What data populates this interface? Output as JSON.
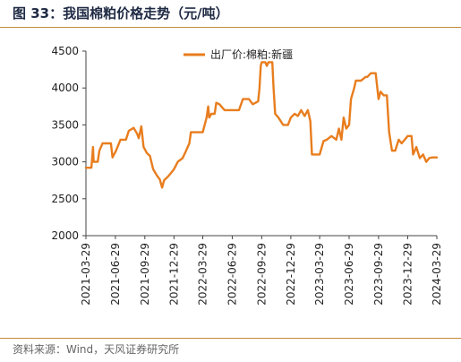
{
  "header": {
    "title": "图 33：我国棉粕价格走势（元/吨）"
  },
  "footer": {
    "source": "资料来源：Wind，天风证券研究所"
  },
  "chart_data": {
    "type": "line",
    "title": "",
    "xlabel": "",
    "ylabel": "",
    "ylim": [
      2000,
      4500
    ],
    "yticks": [
      2000,
      2500,
      3000,
      3500,
      4000,
      4500
    ],
    "xlim": [
      "2021-03-29",
      "2024-03-29"
    ],
    "xticks": [
      "2021-03-29",
      "2021-06-29",
      "2021-09-29",
      "2021-12-29",
      "2022-03-29",
      "2022-06-29",
      "2022-09-29",
      "2022-12-29",
      "2023-03-29",
      "2023-06-29",
      "2023-09-29",
      "2023-12-29",
      "2024-03-29"
    ],
    "grid": false,
    "legend_position": "top-center",
    "series": [
      {
        "name": "出厂价:棉粕:新疆",
        "color": "#e87d1e",
        "points": [
          [
            "2021-03-29",
            2920
          ],
          [
            "2021-04-15",
            2920
          ],
          [
            "2021-04-20",
            3200
          ],
          [
            "2021-04-22",
            3000
          ],
          [
            "2021-05-05",
            3000
          ],
          [
            "2021-05-10",
            3150
          ],
          [
            "2021-05-20",
            3250
          ],
          [
            "2021-06-10",
            3250
          ],
          [
            "2021-06-15",
            3250
          ],
          [
            "2021-06-20",
            3060
          ],
          [
            "2021-07-01",
            3150
          ],
          [
            "2021-07-15",
            3300
          ],
          [
            "2021-08-01",
            3300
          ],
          [
            "2021-08-10",
            3420
          ],
          [
            "2021-08-25",
            3460
          ],
          [
            "2021-09-05",
            3380
          ],
          [
            "2021-09-10",
            3320
          ],
          [
            "2021-09-18",
            3480
          ],
          [
            "2021-09-25",
            3200
          ],
          [
            "2021-10-05",
            3120
          ],
          [
            "2021-10-15",
            3080
          ],
          [
            "2021-10-25",
            2900
          ],
          [
            "2021-11-05",
            2820
          ],
          [
            "2021-11-15",
            2760
          ],
          [
            "2021-11-22",
            2650
          ],
          [
            "2021-11-28",
            2750
          ],
          [
            "2021-12-10",
            2800
          ],
          [
            "2021-12-20",
            2850
          ],
          [
            "2021-12-29",
            2900
          ],
          [
            "2022-01-10",
            3000
          ],
          [
            "2022-01-25",
            3050
          ],
          [
            "2022-02-05",
            3150
          ],
          [
            "2022-02-15",
            3250
          ],
          [
            "2022-02-20",
            3400
          ],
          [
            "2022-03-10",
            3400
          ],
          [
            "2022-03-29",
            3400
          ],
          [
            "2022-04-10",
            3600
          ],
          [
            "2022-04-15",
            3750
          ],
          [
            "2022-04-18",
            3600
          ],
          [
            "2022-04-25",
            3650
          ],
          [
            "2022-05-05",
            3650
          ],
          [
            "2022-05-10",
            3800
          ],
          [
            "2022-05-20",
            3780
          ],
          [
            "2022-06-05",
            3700
          ],
          [
            "2022-06-29",
            3700
          ],
          [
            "2022-07-20",
            3700
          ],
          [
            "2022-08-01",
            3850
          ],
          [
            "2022-08-20",
            3850
          ],
          [
            "2022-09-01",
            3780
          ],
          [
            "2022-09-10",
            3800
          ],
          [
            "2022-09-18",
            3820
          ],
          [
            "2022-09-22",
            4000
          ],
          [
            "2022-09-26",
            4300
          ],
          [
            "2022-09-29",
            4350
          ],
          [
            "2022-10-10",
            4350
          ],
          [
            "2022-10-15",
            4300
          ],
          [
            "2022-10-20",
            4350
          ],
          [
            "2022-11-01",
            4350
          ],
          [
            "2022-11-05",
            4000
          ],
          [
            "2022-11-10",
            3650
          ],
          [
            "2022-11-20",
            3600
          ],
          [
            "2022-12-05",
            3500
          ],
          [
            "2022-12-20",
            3500
          ],
          [
            "2022-12-29",
            3600
          ],
          [
            "2023-01-10",
            3650
          ],
          [
            "2023-01-20",
            3620
          ],
          [
            "2023-01-30",
            3700
          ],
          [
            "2023-02-10",
            3620
          ],
          [
            "2023-02-20",
            3700
          ],
          [
            "2023-02-28",
            3550
          ],
          [
            "2023-03-05",
            3100
          ],
          [
            "2023-03-29",
            3100
          ],
          [
            "2023-04-10",
            3280
          ],
          [
            "2023-04-20",
            3300
          ],
          [
            "2023-05-05",
            3350
          ],
          [
            "2023-05-20",
            3300
          ],
          [
            "2023-05-28",
            3450
          ],
          [
            "2023-06-05",
            3300
          ],
          [
            "2023-06-12",
            3600
          ],
          [
            "2023-06-20",
            3450
          ],
          [
            "2023-06-29",
            3500
          ],
          [
            "2023-07-05",
            3850
          ],
          [
            "2023-07-15",
            4000
          ],
          [
            "2023-07-20",
            4100
          ],
          [
            "2023-08-05",
            4100
          ],
          [
            "2023-08-20",
            4150
          ],
          [
            "2023-08-25",
            4150
          ],
          [
            "2023-09-05",
            4200
          ],
          [
            "2023-09-20",
            4200
          ],
          [
            "2023-09-25",
            4000
          ],
          [
            "2023-09-29",
            3850
          ],
          [
            "2023-10-05",
            3950
          ],
          [
            "2023-10-15",
            3900
          ],
          [
            "2023-10-25",
            3900
          ],
          [
            "2023-11-01",
            3400
          ],
          [
            "2023-11-10",
            3150
          ],
          [
            "2023-11-20",
            3150
          ],
          [
            "2023-12-01",
            3300
          ],
          [
            "2023-12-10",
            3250
          ],
          [
            "2023-12-29",
            3350
          ],
          [
            "2024-01-10",
            3350
          ],
          [
            "2024-01-15",
            3100
          ],
          [
            "2024-01-25",
            3200
          ],
          [
            "2024-02-05",
            3050
          ],
          [
            "2024-02-15",
            3100
          ],
          [
            "2024-02-25",
            3000
          ],
          [
            "2024-03-05",
            3050
          ],
          [
            "2024-03-15",
            3060
          ],
          [
            "2024-03-29",
            3060
          ]
        ]
      }
    ]
  }
}
